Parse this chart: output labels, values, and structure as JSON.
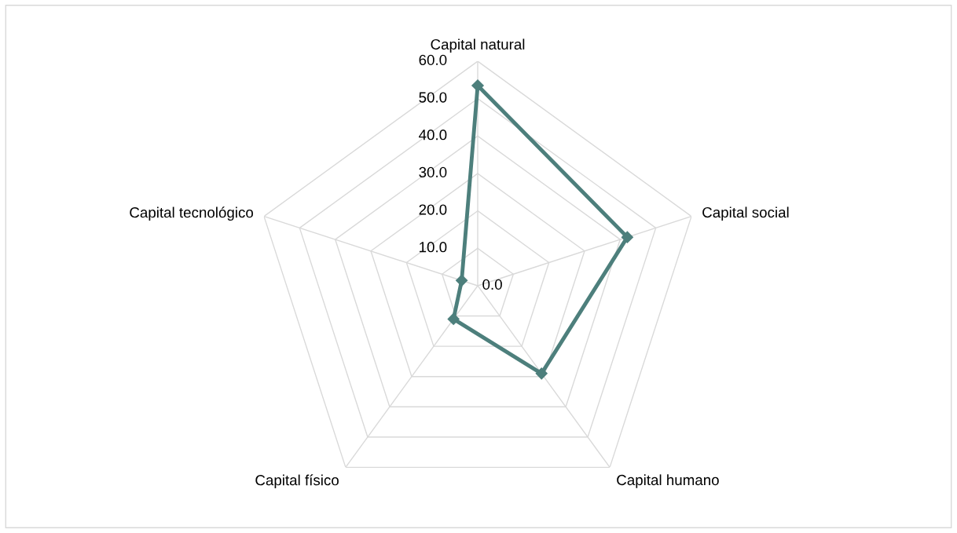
{
  "chart_data": {
    "type": "radar",
    "categories": [
      "Capital natural",
      "Capital social",
      "Capital humano",
      "Capital físico",
      "Capital tecnológico"
    ],
    "series": [
      {
        "color": "#4d7f7c",
        "values": [
          53.5,
          42,
          29,
          11,
          4.5
        ]
      }
    ],
    "ylim": [
      0,
      60
    ],
    "yticks": [
      {
        "value": 0,
        "label": "0.0"
      },
      {
        "value": 10,
        "label": "10.0"
      },
      {
        "value": 20,
        "label": "20.0"
      },
      {
        "value": 30,
        "label": "30.0"
      },
      {
        "value": 40,
        "label": "40.0"
      },
      {
        "value": 50,
        "label": "50.0"
      },
      {
        "value": 60,
        "label": "60.0"
      }
    ],
    "grid": true,
    "marker": "diamond",
    "line_style": "solid",
    "legend": false
  }
}
